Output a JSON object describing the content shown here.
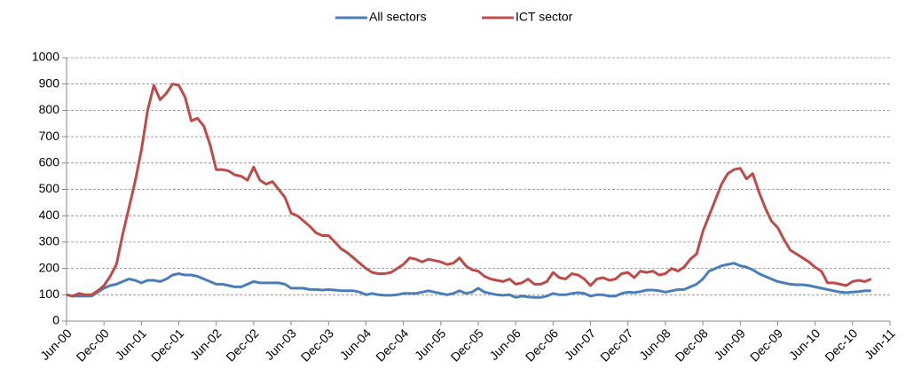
{
  "chart_data": {
    "type": "line",
    "categories": [
      "Jun-00",
      null,
      null,
      null,
      null,
      null,
      "Dec-00",
      null,
      null,
      null,
      null,
      null,
      "Jun-01",
      null,
      null,
      null,
      null,
      null,
      "Dec-01",
      null,
      null,
      null,
      null,
      null,
      "Jun-02",
      null,
      null,
      null,
      null,
      null,
      "Dec-02",
      null,
      null,
      null,
      null,
      null,
      "Jun-03",
      null,
      null,
      null,
      null,
      null,
      "Dec-03",
      null,
      null,
      null,
      null,
      null,
      "Jun-04",
      null,
      null,
      null,
      null,
      null,
      "Dec-04",
      null,
      null,
      null,
      null,
      null,
      "Jun-05",
      null,
      null,
      null,
      null,
      null,
      "Dec-05",
      null,
      null,
      null,
      null,
      null,
      "Jun-06",
      null,
      null,
      null,
      null,
      null,
      "Dec-06",
      null,
      null,
      null,
      null,
      null,
      "Jun-07",
      null,
      null,
      null,
      null,
      null,
      "Dec-07",
      null,
      null,
      null,
      null,
      null,
      "Jun-08",
      null,
      null,
      null,
      null,
      null,
      "Dec-08",
      null,
      null,
      null,
      null,
      null,
      "Jun-09",
      null,
      null,
      null,
      null,
      null,
      "Dec-09",
      null,
      null,
      null,
      null,
      null,
      "Jun-10",
      null,
      null,
      null,
      null,
      null,
      "Dec-10",
      null,
      null,
      null,
      null,
      null,
      "Jun-11"
    ],
    "series": [
      {
        "name": "All sectors",
        "color": "#4a7ebb",
        "values": [
          100,
          95,
          95,
          95,
          95,
          110,
          125,
          135,
          140,
          150,
          160,
          155,
          145,
          155,
          155,
          150,
          160,
          175,
          180,
          175,
          175,
          170,
          160,
          150,
          140,
          140,
          135,
          130,
          130,
          140,
          150,
          145,
          145,
          145,
          145,
          140,
          125,
          125,
          125,
          120,
          120,
          118,
          120,
          118,
          115,
          115,
          115,
          110,
          100,
          105,
          100,
          98,
          98,
          100,
          105,
          105,
          105,
          110,
          115,
          110,
          105,
          100,
          105,
          115,
          105,
          110,
          125,
          110,
          105,
          100,
          98,
          100,
          90,
          95,
          92,
          90,
          90,
          95,
          105,
          100,
          100,
          105,
          108,
          105,
          95,
          100,
          100,
          95,
          95,
          105,
          110,
          108,
          112,
          118,
          118,
          115,
          110,
          115,
          120,
          120,
          130,
          140,
          160,
          190,
          200,
          210,
          215,
          220,
          210,
          205,
          195,
          180,
          170,
          160,
          150,
          145,
          140,
          138,
          138,
          135,
          130,
          125,
          120,
          115,
          110,
          108,
          110,
          112,
          115,
          115,
          null,
          null,
          null
        ]
      },
      {
        "name": "ICT sector",
        "color": "#be4b48",
        "values": [
          100,
          95,
          105,
          100,
          100,
          115,
          135,
          170,
          215,
          330,
          430,
          530,
          650,
          800,
          895,
          840,
          865,
          900,
          895,
          850,
          760,
          770,
          740,
          670,
          575,
          575,
          570,
          555,
          550,
          535,
          585,
          535,
          520,
          530,
          500,
          470,
          410,
          400,
          380,
          360,
          335,
          325,
          325,
          300,
          275,
          260,
          240,
          220,
          200,
          185,
          180,
          180,
          185,
          200,
          215,
          240,
          235,
          225,
          235,
          230,
          225,
          215,
          220,
          240,
          210,
          195,
          190,
          170,
          160,
          155,
          150,
          160,
          140,
          145,
          160,
          140,
          140,
          150,
          185,
          165,
          160,
          180,
          175,
          160,
          135,
          160,
          165,
          155,
          160,
          180,
          185,
          165,
          190,
          185,
          190,
          175,
          180,
          200,
          190,
          205,
          235,
          255,
          340,
          400,
          460,
          520,
          560,
          575,
          580,
          540,
          560,
          490,
          430,
          380,
          355,
          310,
          270,
          255,
          240,
          225,
          205,
          190,
          145,
          145,
          140,
          135,
          150,
          155,
          150,
          160,
          null,
          null,
          null
        ]
      }
    ],
    "ylim": [
      0,
      1000
    ],
    "yticks": [
      0,
      100,
      200,
      300,
      400,
      500,
      600,
      700,
      800,
      900,
      1000
    ],
    "grid": true,
    "legend": "top"
  }
}
